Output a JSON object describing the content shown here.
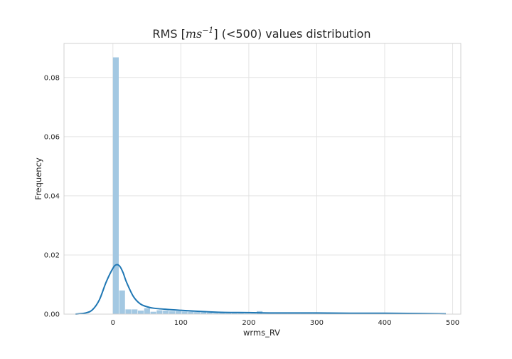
{
  "chart_data": {
    "type": "bar",
    "title": {
      "prefix": "RMS [",
      "math_base": "ms",
      "math_exp": "−1",
      "suffix": "] (<500) values distribution"
    },
    "xlabel": "wrms_RV",
    "ylabel": "Frequency",
    "xlim": [
      -72,
      512
    ],
    "ylim": [
      0,
      0.0915
    ],
    "xticks": [
      0,
      100,
      200,
      300,
      400,
      500
    ],
    "yticks": [
      0.0,
      0.02,
      0.04,
      0.06,
      0.08
    ],
    "ytick_labels": [
      "0.00",
      "0.02",
      "0.04",
      "0.06",
      "0.08"
    ],
    "grid": true,
    "bar_color": "#a3c8e2",
    "kde_color": "#1f77b4",
    "histogram": {
      "bin_start": 0,
      "bin_width": 9.2,
      "values": [
        0.0868,
        0.008,
        0.0016,
        0.0016,
        0.0012,
        0.002,
        0.0008,
        0.0013,
        0.0012,
        0.001,
        0.001,
        0.0009,
        0.0008,
        0.0007,
        0.0006,
        0.0005,
        0.0004,
        0.0004,
        0.0003,
        0.0003,
        0.0003,
        0.0002,
        0.0002,
        0.001,
        0.0002,
        0.0002,
        0.0002,
        0.0002,
        0.0002,
        0.0002,
        0.0002,
        0.0002,
        0.0002,
        0.0002,
        0.0002,
        0.0002,
        0.0002,
        0.0002,
        0.0002,
        0.0002,
        0.0002,
        0.0002,
        0.0002,
        0.0002,
        0.0002,
        0.0002,
        0.0002,
        0.0002,
        0.0002,
        0.0002,
        0.0002,
        0.0002,
        0.0002
      ]
    },
    "kde": {
      "x": [
        -55,
        -40,
        -30,
        -20,
        -10,
        0,
        5,
        10,
        15,
        20,
        30,
        40,
        50,
        60,
        80,
        100,
        130,
        160,
        200,
        230,
        260,
        300,
        350,
        400,
        450,
        490
      ],
      "y": [
        0.0,
        0.0004,
        0.0015,
        0.0048,
        0.0108,
        0.0155,
        0.0167,
        0.0162,
        0.014,
        0.0108,
        0.006,
        0.0035,
        0.0025,
        0.002,
        0.0016,
        0.0013,
        0.0009,
        0.0006,
        0.0005,
        0.0004,
        0.0004,
        0.0004,
        0.0003,
        0.0003,
        0.0002,
        0.0001
      ]
    }
  }
}
